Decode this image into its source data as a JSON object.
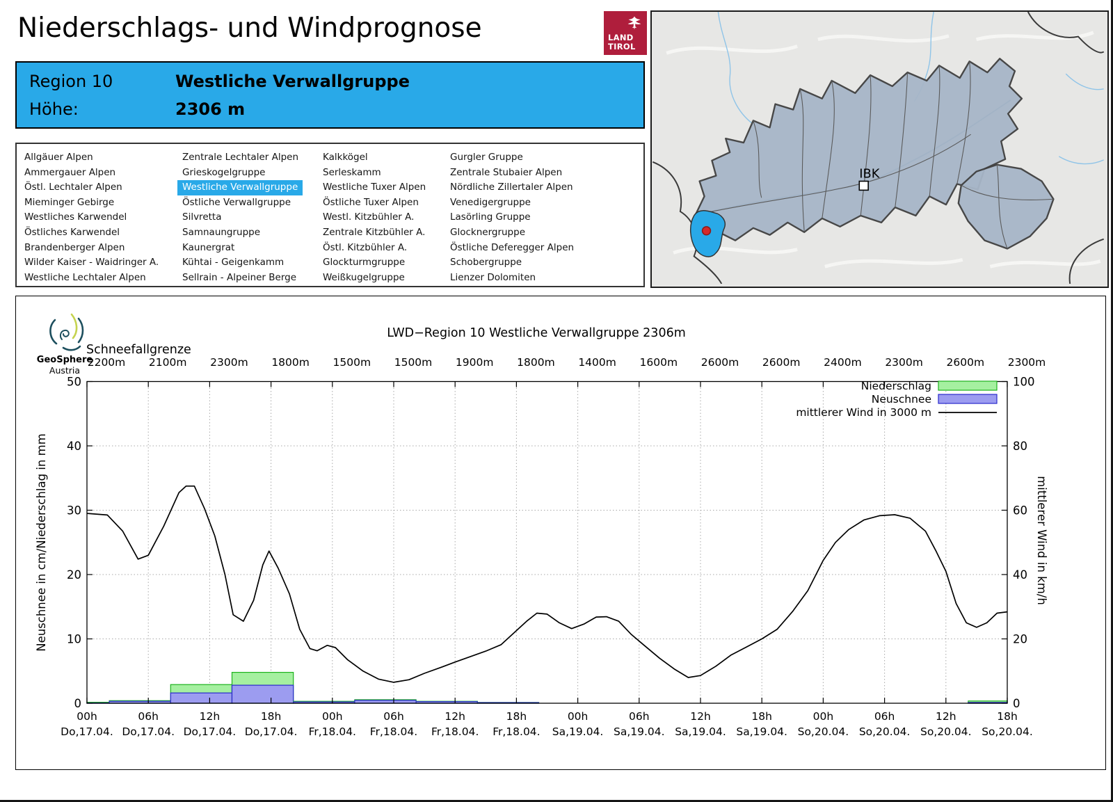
{
  "header": {
    "title": "Niederschlags- und Windprognose",
    "logo_line1": "LAND",
    "logo_line2": "TIROL"
  },
  "info_box": {
    "region_label": "Region 10",
    "region_name": "Westliche Verwallgruppe",
    "altitude_label": "Höhe:",
    "altitude_value": "2306 m"
  },
  "region_list": {
    "selected": "Westliche Verwallgruppe",
    "columns": [
      [
        "Allgäuer Alpen",
        "Ammergauer Alpen",
        "Östl. Lechtaler Alpen",
        "Mieminger Gebirge",
        "Westliches Karwendel",
        "Östliches Karwendel",
        "Brandenberger Alpen",
        "Wilder Kaiser - Waidringer A.",
        "Westliche Lechtaler Alpen"
      ],
      [
        "Zentrale Lechtaler Alpen",
        "Grieskogelgruppe",
        "Westliche Verwallgruppe",
        "Östliche Verwallgruppe",
        "Silvretta",
        "Samnaungruppe",
        "Kaunergrat",
        "Kühtai - Geigenkamm",
        "Sellrain - Alpeiner Berge"
      ],
      [
        "Kalkkögel",
        "Serleskamm",
        "Westliche Tuxer Alpen",
        "Östliche Tuxer Alpen",
        "Westl. Kitzbühler A.",
        "Zentrale Kitzbühler A.",
        "Östl. Kitzbühler A.",
        "Glockturmgruppe",
        "Weißkugelgruppe"
      ],
      [
        "Gurgler Gruppe",
        "Zentrale Stubaier Alpen",
        "Nördliche Zillertaler Alpen",
        "Venedigergruppe",
        "Lasörling Gruppe",
        "Glocknergruppe",
        "Östliche Deferegger Alpen",
        "Schobergruppe",
        "Lienzer Dolomiten"
      ]
    ]
  },
  "map": {
    "city_label": "IBK"
  },
  "branding": {
    "name": "GeoSphere",
    "sub": "Austria"
  },
  "chart_data": {
    "type": "bar",
    "title": "LWD−Region 10 Westliche Verwallgruppe 2306m",
    "snowline_label": "Schneefallgrenze",
    "snowline_values": [
      "2200m",
      "2100m",
      "2300m",
      "1800m",
      "1500m",
      "1500m",
      "1900m",
      "1800m",
      "1400m",
      "1600m",
      "2600m",
      "2600m",
      "2400m",
      "2300m",
      "2600m",
      "2300m"
    ],
    "x_tick_hours": [
      "00h",
      "06h",
      "12h",
      "18h",
      "00h",
      "06h",
      "12h",
      "18h",
      "00h",
      "06h",
      "12h",
      "18h",
      "00h",
      "06h",
      "12h",
      "18h"
    ],
    "x_tick_dates": [
      "Do,17.04.",
      "Do,17.04.",
      "Do,17.04.",
      "Do,17.04.",
      "Fr,18.04.",
      "Fr,18.04.",
      "Fr,18.04.",
      "Fr,18.04.",
      "Sa,19.04.",
      "Sa,19.04.",
      "Sa,19.04.",
      "Sa,19.04.",
      "So,20.04.",
      "So,20.04.",
      "So,20.04.",
      "So,20.04."
    ],
    "ylabel_left": "Neuschnee in cm/Niederschlag in mm",
    "ylabel_right": "mittlerer Wind in km/h",
    "ylim_left": [
      0,
      50
    ],
    "ylim_right": [
      0,
      100
    ],
    "y_ticks_left": [
      0,
      10,
      20,
      30,
      40,
      50
    ],
    "y_ticks_right": [
      0,
      20,
      40,
      60,
      80,
      100
    ],
    "grid": true,
    "legend_position": "top-right",
    "legend": [
      {
        "label": "Niederschlag",
        "type": "box",
        "color": "#A5F0A0"
      },
      {
        "label": "Neuschnee",
        "type": "box",
        "color": "#9C9CF0"
      },
      {
        "label": "mittlerer Wind in 3000 m",
        "type": "line",
        "color": "#000000"
      }
    ],
    "series": [
      {
        "name": "Niederschlag",
        "unit": "mm",
        "type": "bar",
        "values": [
          0.15,
          0.4,
          2.9,
          4.8,
          0.3,
          0.55,
          0.3,
          0.12,
          0,
          0,
          0,
          0,
          0,
          0,
          0,
          0.35
        ]
      },
      {
        "name": "Neuschnee",
        "unit": "cm",
        "type": "bar",
        "values": [
          0.05,
          0.3,
          1.6,
          2.8,
          0.2,
          0.45,
          0.25,
          0.1,
          0,
          0,
          0,
          0,
          0,
          0,
          0,
          0.12
        ]
      },
      {
        "name": "mittlerer Wind in 3000 m",
        "unit": "km/h",
        "type": "line",
        "points": [
          [
            0,
            59
          ],
          [
            2,
            58.5
          ],
          [
            3.5,
            53.5
          ],
          [
            5,
            44.8
          ],
          [
            6,
            46
          ],
          [
            7.5,
            55
          ],
          [
            9,
            65.5
          ],
          [
            9.7,
            67.5
          ],
          [
            10.5,
            67.5
          ],
          [
            11.5,
            60.5
          ],
          [
            12.5,
            52
          ],
          [
            13.5,
            40
          ],
          [
            14.3,
            27.5
          ],
          [
            15.3,
            25.5
          ],
          [
            16.3,
            32
          ],
          [
            17.2,
            43
          ],
          [
            17.8,
            47.3
          ],
          [
            18.7,
            42
          ],
          [
            19.8,
            34
          ],
          [
            20.8,
            23
          ],
          [
            21.8,
            17
          ],
          [
            22.5,
            16.3
          ],
          [
            23.5,
            18
          ],
          [
            24.3,
            17.3
          ],
          [
            25.5,
            13.5
          ],
          [
            27,
            10
          ],
          [
            28.5,
            7.5
          ],
          [
            30,
            6.5
          ],
          [
            31.5,
            7.3
          ],
          [
            33,
            9.3
          ],
          [
            34.5,
            11
          ],
          [
            36,
            12.8
          ],
          [
            37.5,
            14.5
          ],
          [
            39,
            16.2
          ],
          [
            40.5,
            18.2
          ],
          [
            41.8,
            22
          ],
          [
            43,
            25.5
          ],
          [
            44,
            28
          ],
          [
            45,
            27.7
          ],
          [
            46.2,
            25
          ],
          [
            47.4,
            23.2
          ],
          [
            48.6,
            24.6
          ],
          [
            49.8,
            26.8
          ],
          [
            50.8,
            26.9
          ],
          [
            52,
            25.5
          ],
          [
            53.2,
            21.5
          ],
          [
            54.5,
            18
          ],
          [
            56,
            14
          ],
          [
            57.5,
            10.5
          ],
          [
            58.8,
            8
          ],
          [
            60,
            8.6
          ],
          [
            61.5,
            11.5
          ],
          [
            63,
            15
          ],
          [
            64.5,
            17.5
          ],
          [
            66,
            20
          ],
          [
            67.5,
            23
          ],
          [
            69,
            28.5
          ],
          [
            70.5,
            35
          ],
          [
            72,
            44.4
          ],
          [
            73.2,
            50
          ],
          [
            74.5,
            54
          ],
          [
            76,
            57
          ],
          [
            77.5,
            58.3
          ],
          [
            79,
            58.6
          ],
          [
            80.5,
            57.5
          ],
          [
            82,
            53.5
          ],
          [
            83,
            47.5
          ],
          [
            84,
            41
          ],
          [
            85,
            31
          ],
          [
            86,
            25
          ],
          [
            87,
            23.6
          ],
          [
            88,
            25
          ],
          [
            89,
            28
          ],
          [
            90,
            28.4
          ]
        ]
      }
    ],
    "x_hours_span": 90
  },
  "colors": {
    "accent_blue": "#29A9E8",
    "logo_red": "#AF1E3C",
    "precip_fill": "#A5F0A0",
    "precip_stroke": "#1DB21D",
    "snow_fill": "#9C9CF0",
    "snow_stroke": "#2A2ACC",
    "wind_line": "#000000",
    "map_region_fill": "#A7B6C8",
    "map_background": "#E7E7E5",
    "geosphere_teal": "#1D4F5E",
    "geosphere_green": "#C5D34F"
  }
}
